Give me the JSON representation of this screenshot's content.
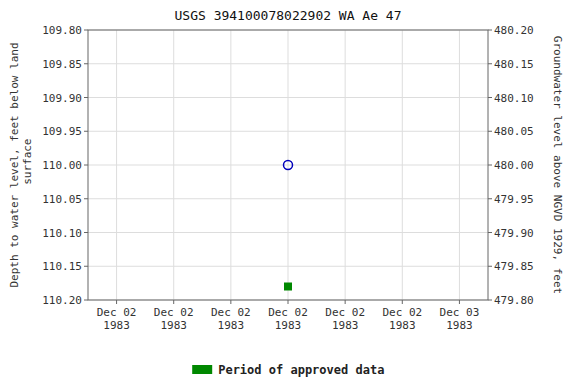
{
  "chart_data": {
    "type": "scatter",
    "title": "USGS 394100078022902 WA Ae  47",
    "y_label": "Depth to water level, feet below land\n surface",
    "y2_label": "Groundwater level above NGVD 1929, feet",
    "categories": [
      "Dec 02\n1983",
      "Dec 02\n1983",
      "Dec 02\n1983",
      "Dec 02\n1983",
      "Dec 02\n1983",
      "Dec 02\n1983",
      "Dec 03\n1983"
    ],
    "series": [
      {
        "color": "#0000bb",
        "marker": "circle",
        "line_style": "none",
        "values": [
          null,
          null,
          null,
          110.0,
          null,
          null,
          null
        ]
      },
      {
        "name": "Period of approved data",
        "color": "#008800",
        "marker": "square",
        "line_style": "none",
        "values": [
          null,
          null,
          null,
          110.18,
          null,
          null,
          null
        ]
      }
    ],
    "ylim": [
      110.2,
      109.8
    ],
    "yticks": [
      {
        "value": 109.8,
        "label": "109.80"
      },
      {
        "value": 109.85,
        "label": "109.85"
      },
      {
        "value": 109.9,
        "label": "109.90"
      },
      {
        "value": 109.95,
        "label": "109.95"
      },
      {
        "value": 110.0,
        "label": "110.00"
      },
      {
        "value": 110.05,
        "label": "110.05"
      },
      {
        "value": 110.1,
        "label": "110.10"
      },
      {
        "value": 110.15,
        "label": "110.15"
      },
      {
        "value": 110.2,
        "label": "110.20"
      }
    ],
    "y2lim": [
      479.8,
      480.2
    ],
    "y2ticks": [
      {
        "value": 480.2,
        "label": "480.20"
      },
      {
        "value": 480.15,
        "label": "480.15"
      },
      {
        "value": 480.1,
        "label": "480.10"
      },
      {
        "value": 480.05,
        "label": "480.05"
      },
      {
        "value": 480.0,
        "label": "480.00"
      },
      {
        "value": 479.95,
        "label": "479.95"
      },
      {
        "value": 479.9,
        "label": "479.90"
      },
      {
        "value": 479.85,
        "label": "479.85"
      },
      {
        "value": 479.8,
        "label": "479.80"
      }
    ],
    "grid": true,
    "legend": "bottom"
  }
}
